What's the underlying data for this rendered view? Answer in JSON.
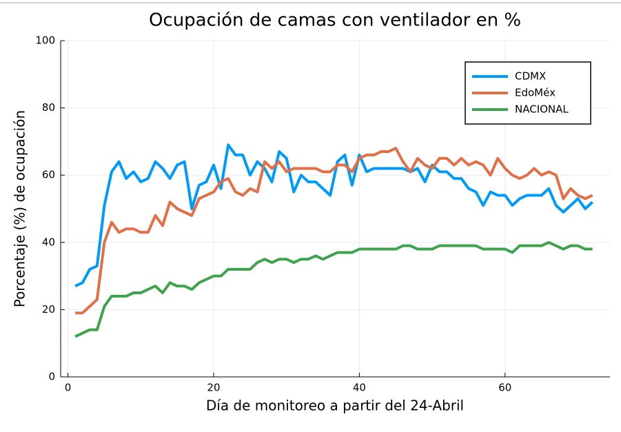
{
  "chart_data": {
    "type": "line",
    "title": "Ocupación de camas con ventilador en %",
    "xlabel": "Día de monitoreo a partir del 24-Abril",
    "ylabel": "Porcentaje (%) de ocupación",
    "x": [
      1,
      2,
      3,
      4,
      5,
      6,
      7,
      8,
      9,
      10,
      11,
      12,
      13,
      14,
      15,
      16,
      17,
      18,
      19,
      20,
      21,
      22,
      23,
      24,
      25,
      26,
      27,
      28,
      29,
      30,
      31,
      32,
      33,
      34,
      35,
      36,
      37,
      38,
      39,
      40,
      41,
      42,
      43,
      44,
      45,
      46,
      47,
      48,
      49,
      50,
      51,
      52,
      53,
      54,
      55,
      56,
      57,
      58,
      59,
      60,
      61,
      62,
      63,
      64,
      65,
      66,
      67,
      68,
      69,
      70,
      71,
      72
    ],
    "series": [
      {
        "name": "CDMX",
        "color": "#009afa",
        "values": [
          27,
          28,
          32,
          33,
          51,
          61,
          64,
          59,
          61,
          58,
          59,
          64,
          62,
          59,
          63,
          64,
          50,
          57,
          58,
          63,
          56,
          69,
          66,
          66,
          60,
          64,
          62,
          58,
          67,
          65,
          55,
          60,
          58,
          58,
          56,
          54,
          64,
          66,
          57,
          66,
          61,
          62,
          62,
          62,
          62,
          62,
          61,
          62,
          58,
          63,
          61,
          61,
          59,
          59,
          56,
          55,
          51,
          55,
          54,
          54,
          51,
          53,
          54,
          54,
          54,
          56,
          51,
          49,
          51,
          53,
          50,
          52
        ]
      },
      {
        "name": "EdoMéx",
        "color": "#e26f46",
        "values": [
          19,
          19,
          21,
          23,
          40,
          46,
          43,
          44,
          44,
          43,
          43,
          48,
          45,
          52,
          50,
          49,
          48,
          53,
          54,
          55,
          58,
          59,
          55,
          54,
          56,
          55,
          64,
          62,
          64,
          61,
          62,
          62,
          62,
          62,
          61,
          61,
          63,
          63,
          61,
          65,
          66,
          66,
          67,
          67,
          68,
          64,
          61,
          65,
          63,
          62,
          65,
          65,
          63,
          65,
          63,
          64,
          63,
          60,
          65,
          62,
          60,
          59,
          60,
          62,
          60,
          61,
          60,
          53,
          56,
          54,
          53,
          54
        ]
      },
      {
        "name": "NACIONAL",
        "color": "#3da44d",
        "values": [
          12,
          13,
          14,
          14,
          21,
          24,
          24,
          24,
          25,
          25,
          26,
          27,
          25,
          28,
          27,
          27,
          26,
          28,
          29,
          30,
          30,
          32,
          32,
          32,
          32,
          34,
          35,
          34,
          35,
          35,
          34,
          35,
          35,
          36,
          35,
          36,
          37,
          37,
          37,
          38,
          38,
          38,
          38,
          38,
          38,
          39,
          39,
          38,
          38,
          38,
          39,
          39,
          39,
          39,
          39,
          39,
          38,
          38,
          38,
          38,
          37,
          39,
          39,
          39,
          39,
          40,
          39,
          38,
          39,
          39,
          38,
          38
        ]
      }
    ],
    "xlim": [
      -1,
      74.4
    ],
    "ylim": [
      0,
      100
    ],
    "xticks": [
      0,
      20,
      40,
      60
    ],
    "yticks": [
      0,
      20,
      40,
      60,
      80,
      100
    ],
    "grid": true,
    "legend": "top-right"
  }
}
